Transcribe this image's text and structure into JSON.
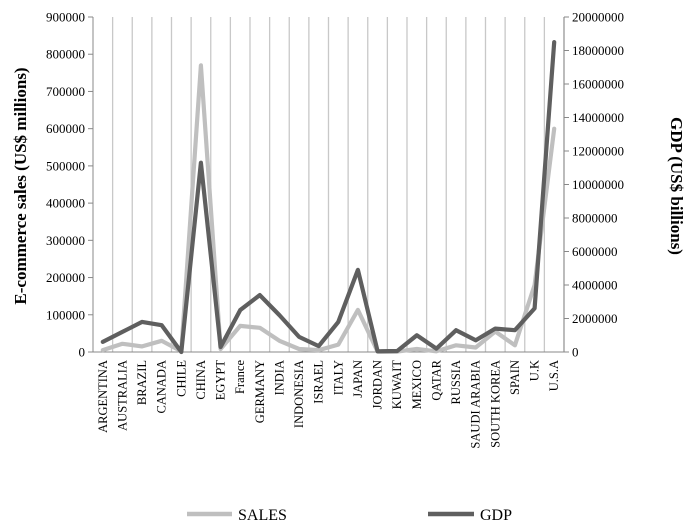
{
  "chart_data": {
    "type": "line",
    "title": "",
    "xlabel": "",
    "ylabel": "E-commerce sales (US$ millions)",
    "y2label": "GDP (US$ billions)",
    "ylim": [
      0,
      900000
    ],
    "y2lim": [
      0,
      20000000
    ],
    "yticks": [
      "0",
      "100000",
      "200000",
      "300000",
      "400000",
      "500000",
      "600000",
      "700000",
      "800000",
      "900000"
    ],
    "y2ticks": [
      "0",
      "2000000",
      "4000000",
      "6000000",
      "8000000",
      "10000000",
      "12000000",
      "14000000",
      "16000000",
      "18000000",
      "20000000"
    ],
    "grid": "vertical",
    "legend_position": "bottom",
    "categories": [
      "ARGENTINA",
      "AUSTRALIA",
      "BRAZIL",
      "CANADA",
      "CHILE",
      "CHINA",
      "EGYPT",
      "France",
      "GERMANY",
      "INDIA",
      "INDONESIA",
      "ISRAEL",
      "ITALY",
      "JAPAN",
      "JORDAN",
      "KUWAIT",
      "MEXICO",
      "QATAR",
      "RUSSIA",
      "SAUDI ARABIA",
      "SOUTH KOREA",
      "SPAIN",
      "U.K",
      "U.S.A"
    ],
    "series": [
      {
        "name": "SALES",
        "axis": "left",
        "color": "#bfbfbf",
        "values": [
          5000,
          22000,
          15000,
          30000,
          2000,
          770000,
          8000,
          70000,
          65000,
          30000,
          8000,
          5000,
          20000,
          113000,
          1000,
          1000,
          8000,
          2000,
          18000,
          12000,
          55000,
          18000,
          180000,
          600000
        ]
      },
      {
        "name": "GDP",
        "axis": "right",
        "color": "#5f5f5f",
        "values": [
          600000,
          1200000,
          1800000,
          1600000,
          0,
          11300000,
          300000,
          2500000,
          3400000,
          2200000,
          900000,
          350000,
          1800000,
          4900000,
          40000,
          60000,
          1000000,
          200000,
          1300000,
          700000,
          1400000,
          1300000,
          2600000,
          18500000
        ]
      }
    ]
  }
}
